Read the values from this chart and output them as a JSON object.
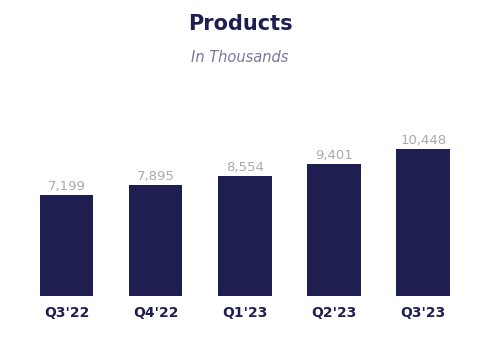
{
  "title": "Products",
  "subtitle": "In Thousands",
  "categories": [
    "Q3'22",
    "Q4'22",
    "Q1'23",
    "Q2'23",
    "Q3'23"
  ],
  "values": [
    7199,
    7895,
    8554,
    9401,
    10448
  ],
  "labels": [
    "7,199",
    "7,895",
    "8,554",
    "9,401",
    "10,448"
  ],
  "bar_color": "#1e1e50",
  "background_color": "#ffffff",
  "title_color": "#1e1e50",
  "subtitle_color": "#7878a0",
  "label_color": "#aaaaaa",
  "xlabel_color": "#1e1e50",
  "title_fontsize": 15,
  "subtitle_fontsize": 10.5,
  "label_fontsize": 9.5,
  "xlabel_fontsize": 10,
  "ylim": [
    0,
    13000
  ],
  "bar_width": 0.6
}
